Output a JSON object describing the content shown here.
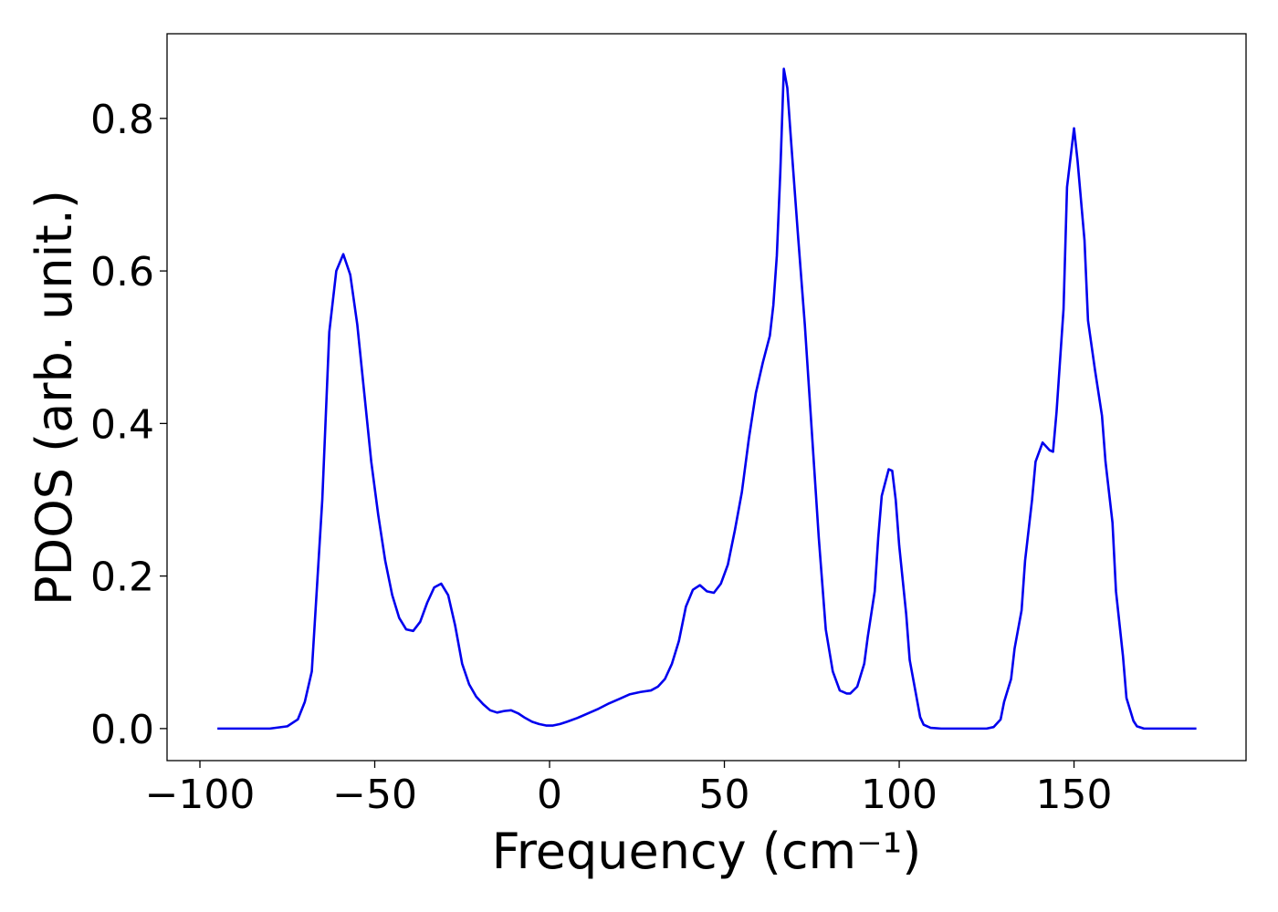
{
  "chart_data": {
    "type": "line",
    "x_label": "Frequency (cm⁻¹)",
    "y_label": "PDOS (arb. unit.)",
    "xlim": [
      -109.4,
      199.2
    ],
    "ylim": [
      -0.042,
      0.911
    ],
    "xticks": [
      {
        "value": -100,
        "label": "−100"
      },
      {
        "value": -50,
        "label": "−50"
      },
      0,
      50,
      100,
      150
    ],
    "yticks": [
      {
        "value": 0,
        "label": "0.0"
      },
      0.2,
      0.4,
      0.6,
      0.8
    ],
    "series": [
      {
        "color": "#0000ee",
        "x": [
          -95,
          -80,
          -75,
          -72,
          -70,
          -68,
          -67,
          -65,
          -63,
          -61,
          -59,
          -57,
          -55,
          -53,
          -51,
          -49,
          -47,
          -45,
          -43,
          -41,
          -39,
          -37,
          -35,
          -33,
          -31,
          -29,
          -27,
          -25,
          -23,
          -21,
          -19,
          -17,
          -15,
          -13,
          -11,
          -9,
          -7,
          -5,
          -3,
          -1,
          1,
          3,
          5,
          8,
          11,
          14,
          17,
          20,
          23,
          26,
          29,
          31,
          33,
          35,
          37,
          39,
          41,
          43,
          45,
          47,
          49,
          51,
          53,
          55,
          57,
          59,
          61,
          63,
          64,
          65,
          66,
          67,
          68,
          69,
          71,
          73,
          75,
          77,
          79,
          81,
          83,
          85,
          86,
          88,
          90,
          91,
          93,
          94,
          95,
          97,
          98,
          99,
          100,
          102,
          103,
          105,
          106,
          107,
          109,
          112,
          125,
          127,
          129,
          130,
          132,
          133,
          135,
          136,
          138,
          139,
          141,
          143,
          144,
          145,
          147,
          148,
          150,
          151,
          153,
          154,
          156,
          158,
          159,
          161,
          162,
          164,
          165,
          167,
          168,
          170,
          185
        ],
        "values": [
          0,
          0,
          0.003,
          0.012,
          0.035,
          0.075,
          0.15,
          0.3,
          0.52,
          0.6,
          0.622,
          0.595,
          0.53,
          0.44,
          0.35,
          0.28,
          0.22,
          0.175,
          0.145,
          0.13,
          0.128,
          0.14,
          0.165,
          0.185,
          0.19,
          0.175,
          0.135,
          0.085,
          0.058,
          0.042,
          0.032,
          0.024,
          0.021,
          0.023,
          0.024,
          0.02,
          0.014,
          0.009,
          0.006,
          0.004,
          0.004,
          0.006,
          0.009,
          0.014,
          0.02,
          0.026,
          0.033,
          0.039,
          0.045,
          0.048,
          0.05,
          0.055,
          0.065,
          0.085,
          0.115,
          0.16,
          0.182,
          0.188,
          0.18,
          0.178,
          0.19,
          0.215,
          0.26,
          0.31,
          0.38,
          0.44,
          0.48,
          0.515,
          0.555,
          0.62,
          0.73,
          0.865,
          0.84,
          0.775,
          0.65,
          0.53,
          0.39,
          0.25,
          0.13,
          0.075,
          0.05,
          0.046,
          0.046,
          0.055,
          0.085,
          0.12,
          0.18,
          0.25,
          0.305,
          0.34,
          0.338,
          0.3,
          0.24,
          0.15,
          0.09,
          0.04,
          0.015,
          0.005,
          0.001,
          0,
          0,
          0.002,
          0.012,
          0.035,
          0.065,
          0.105,
          0.155,
          0.22,
          0.3,
          0.35,
          0.375,
          0.365,
          0.363,
          0.415,
          0.55,
          0.71,
          0.787,
          0.745,
          0.64,
          0.535,
          0.47,
          0.41,
          0.35,
          0.27,
          0.18,
          0.095,
          0.04,
          0.01,
          0.003,
          0,
          0
        ]
      }
    ]
  }
}
